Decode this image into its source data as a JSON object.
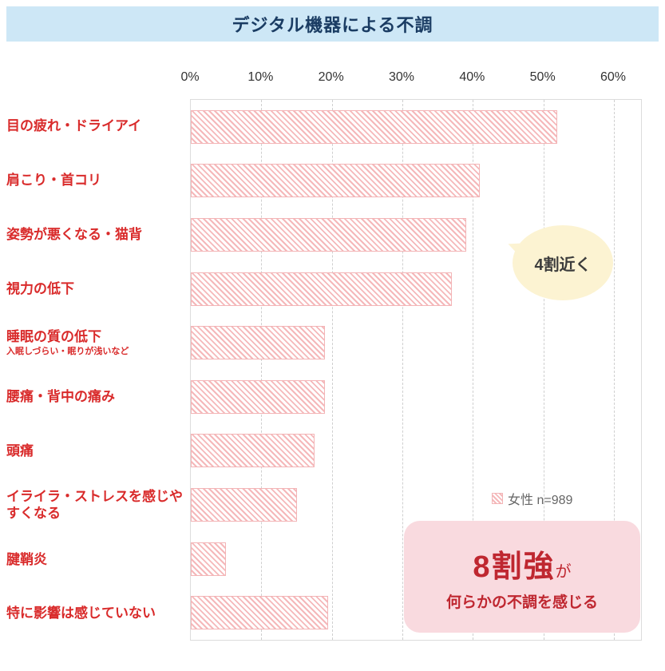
{
  "title": "デジタル機器による不調",
  "legend": {
    "label": "女性 n=989"
  },
  "annotations": {
    "bubble": "4割近く",
    "highlight_big": "8割強",
    "highlight_suffix": "が",
    "highlight_line2": "何らかの不調を感じる"
  },
  "colors": {
    "banner_bg": "#cde7f6",
    "title_text": "#1a3c63",
    "category_text": "#d92b2b",
    "bar_stripe": "#f5b8ba",
    "bar_border": "#f3b4b6",
    "gridline": "#cfcfcf",
    "bubble_bg": "#fcf3d2",
    "highlight_bg": "#f9dadf",
    "highlight_text": "#bf2730"
  },
  "chart_data": {
    "type": "bar",
    "orientation": "horizontal",
    "title": "デジタル機器による不調",
    "categories": [
      "目の疲れ・ドライアイ",
      "肩こり・首コリ",
      "姿勢が悪くなる・猫背",
      "視力の低下",
      "睡眠の質の低下",
      "腰痛・背中の痛み",
      "頭痛",
      "イライラ・ストレスを感じやすくなる",
      "腱鞘炎",
      "特に影響は感じていない"
    ],
    "sub_labels": {
      "4": "入眠しづらい・眠りが浅いなど"
    },
    "series": [
      {
        "name": "女性 n=989",
        "values": [
          52,
          41,
          39,
          37,
          19,
          19,
          17.5,
          15,
          5,
          19.5
        ]
      }
    ],
    "x_ticks": [
      "0%",
      "10%",
      "20%",
      "30%",
      "40%",
      "50%",
      "60%"
    ],
    "xlim": [
      0,
      60
    ],
    "grid": "dashed-vertical",
    "legend_position": "right-middle"
  }
}
